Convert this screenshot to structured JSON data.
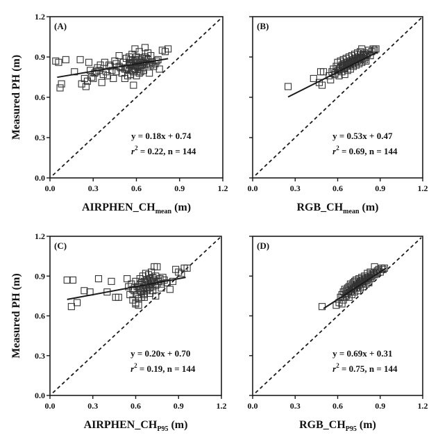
{
  "chart_data": [
    {
      "type": "scatter",
      "panel_label": "(A)",
      "xlabel_main": "AIRPHEN_CH",
      "xlabel_sub": "mean",
      "xlabel_unit": " (m)",
      "ylabel": "Measured PH (m)",
      "xlim": [
        0,
        1.2
      ],
      "ylim": [
        0,
        1.2
      ],
      "xticks": [
        "0.0",
        "0.3",
        "0.6",
        "0.9",
        "1.2"
      ],
      "yticks": [
        "0.0",
        "0.3",
        "0.6",
        "0.9",
        "1.2"
      ],
      "show_y_tick_labels": true,
      "equation": "y = 0.18x + 0.74",
      "stats_r": "r",
      "stats_exp": "2",
      "stats_rest": " = 0.22, n = 144",
      "fit": {
        "slope": 0.18,
        "intercept": 0.74,
        "x_range": [
          0.05,
          0.82
        ]
      },
      "one_to_one_line": true,
      "points": {
        "x": [
          0.04,
          0.06,
          0.07,
          0.08,
          0.11,
          0.17,
          0.21,
          0.22,
          0.24,
          0.25,
          0.27,
          0.28,
          0.3,
          0.33,
          0.35,
          0.36,
          0.38,
          0.39,
          0.4,
          0.42,
          0.44,
          0.45,
          0.46,
          0.48,
          0.5,
          0.51,
          0.52,
          0.53,
          0.54,
          0.55,
          0.55,
          0.56,
          0.56,
          0.57,
          0.57,
          0.58,
          0.58,
          0.59,
          0.59,
          0.6,
          0.6,
          0.61,
          0.61,
          0.62,
          0.62,
          0.63,
          0.63,
          0.64,
          0.65,
          0.66,
          0.67,
          0.68,
          0.69,
          0.7,
          0.72,
          0.74,
          0.76,
          0.78,
          0.8,
          0.82,
          0.56,
          0.58,
          0.6,
          0.62,
          0.64,
          0.66,
          0.59,
          0.61,
          0.63,
          0.57,
          0.65,
          0.68,
          0.7,
          0.53,
          0.55,
          0.6,
          0.62,
          0.64,
          0.67,
          0.71,
          0.73,
          0.75,
          0.58,
          0.54,
          0.52,
          0.48,
          0.43,
          0.37,
          0.32,
          0.29,
          0.26,
          0.31,
          0.34,
          0.41,
          0.46,
          0.49,
          0.55,
          0.61,
          0.66,
          0.69
        ],
        "y": [
          0.87,
          0.86,
          0.67,
          0.7,
          0.88,
          0.79,
          0.88,
          0.7,
          0.74,
          0.68,
          0.86,
          0.8,
          0.74,
          0.82,
          0.84,
          0.71,
          0.86,
          0.79,
          0.76,
          0.83,
          0.74,
          0.87,
          0.79,
          0.91,
          0.78,
          0.86,
          0.74,
          0.89,
          0.82,
          0.9,
          0.8,
          0.88,
          0.77,
          0.92,
          0.84,
          0.86,
          0.79,
          0.96,
          0.81,
          0.9,
          0.76,
          0.88,
          0.83,
          0.94,
          0.78,
          0.86,
          0.82,
          0.89,
          0.8,
          0.97,
          0.85,
          0.88,
          0.78,
          0.91,
          0.83,
          0.87,
          0.81,
          0.95,
          0.94,
          0.96,
          0.85,
          0.83,
          0.87,
          0.81,
          0.84,
          0.9,
          0.88,
          0.82,
          0.79,
          0.8,
          0.86,
          0.93,
          0.84,
          0.81,
          0.86,
          0.84,
          0.88,
          0.82,
          0.89,
          0.86,
          0.85,
          0.88,
          0.69,
          0.76,
          0.81,
          0.83,
          0.8,
          0.77,
          0.79,
          0.75,
          0.72,
          0.78,
          0.8,
          0.84,
          0.85,
          0.82,
          0.84,
          0.86,
          0.87,
          0.85
        ]
      }
    },
    {
      "type": "scatter",
      "panel_label": "(B)",
      "xlabel_main": "RGB_CH",
      "xlabel_sub": "mean",
      "xlabel_unit": " (m)",
      "ylabel": "",
      "xlim": [
        0,
        1.2
      ],
      "ylim": [
        0,
        1.2
      ],
      "xticks": [
        "0.0",
        "0.3",
        "0.6",
        "0.9",
        "1.2"
      ],
      "yticks": [
        "0.0",
        "0.3",
        "0.6",
        "0.9",
        "1.2"
      ],
      "show_y_tick_labels": false,
      "equation": "y = 0.53x + 0.47",
      "stats_r": "r",
      "stats_exp": "2",
      "stats_rest": " = 0.69, n = 144",
      "fit": {
        "slope": 0.53,
        "intercept": 0.47,
        "x_range": [
          0.25,
          0.88
        ]
      },
      "one_to_one_line": true,
      "points": {
        "x": [
          0.25,
          0.43,
          0.47,
          0.48,
          0.5,
          0.49,
          0.54,
          0.55,
          0.56,
          0.57,
          0.58,
          0.59,
          0.6,
          0.6,
          0.61,
          0.62,
          0.62,
          0.63,
          0.63,
          0.64,
          0.64,
          0.65,
          0.65,
          0.66,
          0.66,
          0.67,
          0.67,
          0.68,
          0.68,
          0.69,
          0.69,
          0.7,
          0.7,
          0.71,
          0.71,
          0.72,
          0.72,
          0.73,
          0.73,
          0.74,
          0.74,
          0.75,
          0.75,
          0.76,
          0.76,
          0.77,
          0.77,
          0.78,
          0.78,
          0.79,
          0.79,
          0.8,
          0.8,
          0.81,
          0.82,
          0.83,
          0.84,
          0.85,
          0.86,
          0.87,
          0.62,
          0.64,
          0.66,
          0.68,
          0.7,
          0.72,
          0.74,
          0.76,
          0.78,
          0.8,
          0.58,
          0.61,
          0.63,
          0.65,
          0.67,
          0.69,
          0.71,
          0.73,
          0.75,
          0.77
        ],
        "y": [
          0.68,
          0.74,
          0.71,
          0.79,
          0.79,
          0.69,
          0.76,
          0.73,
          0.79,
          0.81,
          0.77,
          0.83,
          0.8,
          0.86,
          0.76,
          0.82,
          0.87,
          0.79,
          0.84,
          0.81,
          0.88,
          0.77,
          0.85,
          0.83,
          0.89,
          0.8,
          0.86,
          0.84,
          0.9,
          0.81,
          0.87,
          0.85,
          0.91,
          0.83,
          0.88,
          0.86,
          0.92,
          0.84,
          0.89,
          0.87,
          0.93,
          0.85,
          0.9,
          0.88,
          0.94,
          0.86,
          0.96,
          0.89,
          0.92,
          0.88,
          0.93,
          0.9,
          0.87,
          0.92,
          0.95,
          0.91,
          0.94,
          0.96,
          0.95,
          0.96,
          0.82,
          0.84,
          0.86,
          0.85,
          0.87,
          0.89,
          0.88,
          0.9,
          0.91,
          0.92,
          0.78,
          0.8,
          0.83,
          0.82,
          0.84,
          0.85,
          0.86,
          0.88,
          0.89,
          0.9
        ]
      }
    },
    {
      "type": "scatter",
      "panel_label": "(C)",
      "xlabel_main": "AIRPHEN_CH",
      "xlabel_sub": "P95",
      "xlabel_unit": " (m)",
      "ylabel": "Measured PH (m)",
      "xlim": [
        0,
        1.2
      ],
      "ylim": [
        0,
        1.2
      ],
      "xticks": [
        "0.0",
        "0.3",
        "0.6",
        "0.9",
        "1.2"
      ],
      "yticks": [
        "0.0",
        "0.3",
        "0.6",
        "0.9",
        "1.2"
      ],
      "show_y_tick_labels": true,
      "equation": "y = 0.20x + 0.70",
      "stats_r": "r",
      "stats_exp": "2",
      "stats_rest": " = 0.19, n = 144",
      "fit": {
        "slope": 0.2,
        "intercept": 0.7,
        "x_range": [
          0.12,
          0.95
        ]
      },
      "one_to_one_line": true,
      "points": {
        "x": [
          0.12,
          0.15,
          0.16,
          0.19,
          0.24,
          0.28,
          0.34,
          0.4,
          0.43,
          0.46,
          0.48,
          0.54,
          0.55,
          0.56,
          0.57,
          0.58,
          0.59,
          0.6,
          0.6,
          0.61,
          0.62,
          0.62,
          0.63,
          0.63,
          0.64,
          0.64,
          0.65,
          0.65,
          0.66,
          0.66,
          0.67,
          0.67,
          0.68,
          0.68,
          0.69,
          0.69,
          0.7,
          0.7,
          0.71,
          0.71,
          0.72,
          0.72,
          0.73,
          0.73,
          0.74,
          0.74,
          0.75,
          0.76,
          0.77,
          0.78,
          0.79,
          0.8,
          0.82,
          0.84,
          0.86,
          0.88,
          0.9,
          0.92,
          0.94,
          0.96,
          0.61,
          0.63,
          0.65,
          0.67,
          0.69,
          0.71,
          0.73,
          0.75,
          0.64,
          0.66,
          0.68,
          0.7,
          0.72,
          0.58,
          0.62,
          0.66,
          0.7,
          0.74,
          0.78,
          0.6
        ],
        "y": [
          0.87,
          0.67,
          0.87,
          0.7,
          0.79,
          0.78,
          0.88,
          0.78,
          0.86,
          0.74,
          0.74,
          0.88,
          0.82,
          0.76,
          0.84,
          0.72,
          0.79,
          0.7,
          0.86,
          0.76,
          0.68,
          0.82,
          0.79,
          0.88,
          0.74,
          0.85,
          0.81,
          0.9,
          0.77,
          0.86,
          0.83,
          0.92,
          0.79,
          0.87,
          0.84,
          0.91,
          0.81,
          0.88,
          0.85,
          0.93,
          0.82,
          0.89,
          0.86,
          0.97,
          0.83,
          0.9,
          0.97,
          0.86,
          0.88,
          0.84,
          0.89,
          0.87,
          0.85,
          0.8,
          0.86,
          0.95,
          0.93,
          0.92,
          0.96,
          0.96,
          0.82,
          0.84,
          0.8,
          0.85,
          0.83,
          0.86,
          0.87,
          0.84,
          0.78,
          0.76,
          0.8,
          0.82,
          0.79,
          0.8,
          0.73,
          0.74,
          0.77,
          0.75,
          0.81,
          0.69
        ]
      }
    },
    {
      "type": "scatter",
      "panel_label": "(D)",
      "xlabel_main": "RGB_CH",
      "xlabel_sub": "P95",
      "xlabel_unit": " (m)",
      "ylabel": "",
      "xlim": [
        0,
        1.2
      ],
      "ylim": [
        0,
        1.2
      ],
      "xticks": [
        "0.0",
        "0.3",
        "0.6",
        "0.9",
        "1.2"
      ],
      "yticks": [
        "0.0",
        "0.3",
        "0.6",
        "0.9",
        "1.2"
      ],
      "show_y_tick_labels": false,
      "equation": "y = 0.69x + 0.31",
      "stats_r": "r",
      "stats_exp": "2",
      "stats_rest": " = 0.75, n = 144",
      "fit": {
        "slope": 0.69,
        "intercept": 0.31,
        "x_range": [
          0.5,
          0.94
        ]
      },
      "one_to_one_line": true,
      "points": {
        "x": [
          0.49,
          0.59,
          0.61,
          0.62,
          0.63,
          0.63,
          0.64,
          0.64,
          0.65,
          0.65,
          0.66,
          0.66,
          0.67,
          0.67,
          0.68,
          0.68,
          0.69,
          0.69,
          0.7,
          0.7,
          0.71,
          0.71,
          0.72,
          0.72,
          0.73,
          0.73,
          0.74,
          0.74,
          0.75,
          0.75,
          0.76,
          0.76,
          0.77,
          0.77,
          0.78,
          0.78,
          0.79,
          0.79,
          0.8,
          0.8,
          0.81,
          0.81,
          0.82,
          0.82,
          0.83,
          0.83,
          0.84,
          0.85,
          0.86,
          0.87,
          0.88,
          0.89,
          0.9,
          0.91,
          0.92,
          0.93,
          0.66,
          0.68,
          0.7,
          0.72,
          0.74,
          0.76,
          0.78,
          0.8,
          0.82,
          0.84,
          0.86,
          0.88,
          0.71,
          0.73,
          0.75,
          0.77,
          0.79,
          0.81,
          0.83,
          0.85
        ],
        "y": [
          0.67,
          0.68,
          0.7,
          0.74,
          0.69,
          0.76,
          0.72,
          0.78,
          0.74,
          0.8,
          0.75,
          0.79,
          0.77,
          0.81,
          0.74,
          0.82,
          0.78,
          0.84,
          0.76,
          0.83,
          0.8,
          0.85,
          0.78,
          0.86,
          0.81,
          0.87,
          0.79,
          0.84,
          0.83,
          0.88,
          0.81,
          0.86,
          0.84,
          0.89,
          0.82,
          0.87,
          0.86,
          0.9,
          0.84,
          0.88,
          0.87,
          0.92,
          0.85,
          0.89,
          0.88,
          0.93,
          0.9,
          0.91,
          0.97,
          0.92,
          0.94,
          0.95,
          0.93,
          0.96,
          0.95,
          0.96,
          0.77,
          0.79,
          0.8,
          0.82,
          0.83,
          0.85,
          0.86,
          0.87,
          0.89,
          0.9,
          0.91,
          0.93,
          0.82,
          0.83,
          0.85,
          0.86,
          0.88,
          0.89,
          0.91,
          0.92
        ]
      }
    }
  ],
  "colors": {
    "ink": "#1a1a1a",
    "marker": "#333333",
    "background": "#ffffff"
  }
}
